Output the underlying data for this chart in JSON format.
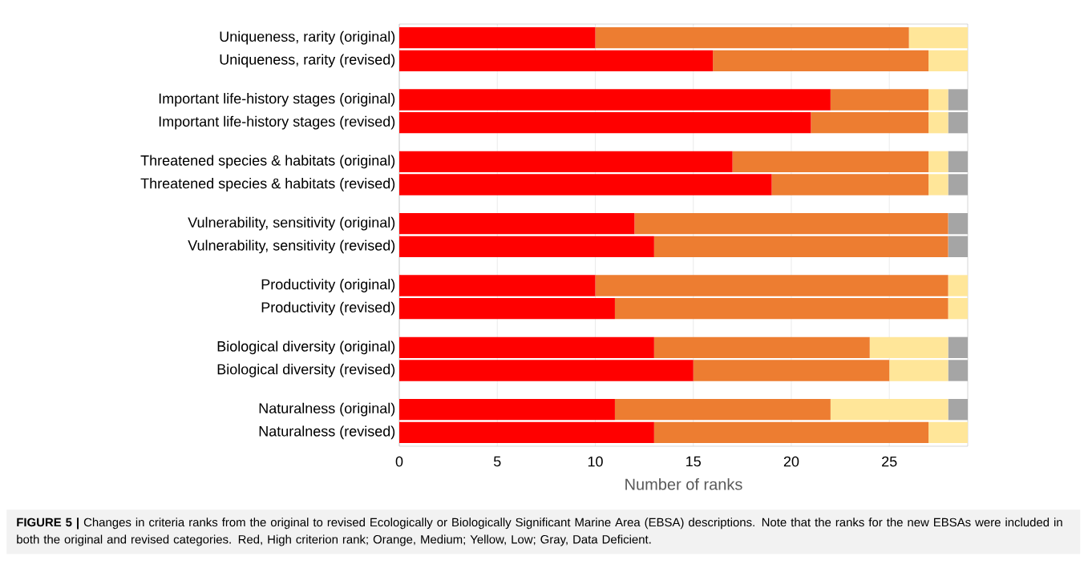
{
  "chart_data": {
    "type": "bar",
    "orientation": "horizontal",
    "stacked": true,
    "categories": [
      "Uniqueness, rarity (original)",
      "Uniqueness, rarity (revised)",
      "Important life-history stages  (original)",
      "Important life-history stages  (revised)",
      "Threatened species & habitats (original)",
      "Threatened species & habitats (revised)",
      "Vulnerability, sensitivity (original)",
      "Vulnerability, sensitivity (revised)",
      "Productivity (original)",
      "Productivity (revised)",
      "Biological diversity (original)",
      "Biological diversity (revised)",
      "Naturalness (original)",
      "Naturalness (revised)"
    ],
    "series": [
      {
        "color": "#ff0000",
        "values": [
          10,
          16,
          22,
          21,
          17,
          19,
          12,
          13,
          10,
          11,
          13,
          15,
          11,
          13
        ]
      },
      {
        "color": "#ed7d31",
        "values": [
          16,
          11,
          5,
          6,
          10,
          8,
          16,
          15,
          18,
          17,
          11,
          10,
          11,
          14
        ]
      },
      {
        "color": "#ffe699",
        "values": [
          3,
          2,
          1,
          1,
          1,
          1,
          0,
          0,
          1,
          1,
          4,
          3,
          6,
          2
        ]
      },
      {
        "color": "#a5a5a5",
        "values": [
          0,
          0,
          1,
          1,
          1,
          1,
          1,
          1,
          0,
          0,
          1,
          1,
          1,
          0
        ]
      }
    ],
    "xlim": [
      0,
      29
    ],
    "xticks": [
      0,
      5,
      10,
      15,
      20,
      25
    ],
    "xlabel": "Number of ranks",
    "grid": "x",
    "annotations": [
      "**FIGURE 5 |** Changes in criteria ranks from the original to revised Ecologically or Biologically Significant Marine Area (EBSA) descriptions. Note that the ranks for the new EBSAs were included in both the original and revised categories. Red, High criterion rank; Orange, Medium; Yellow, Low; Gray, Data Deficient."
    ]
  }
}
